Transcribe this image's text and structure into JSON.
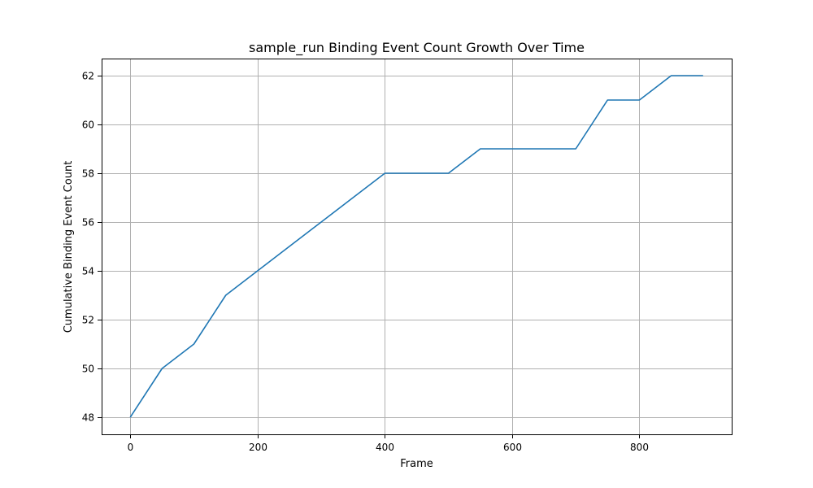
{
  "chart_data": {
    "type": "line",
    "title": "sample_run Binding Event Count Growth Over Time",
    "xlabel": "Frame",
    "ylabel": "Cumulative Binding Event Count",
    "xlim": [
      -45,
      945
    ],
    "ylim": [
      47.3,
      62.7
    ],
    "xticks": [
      0,
      200,
      400,
      600,
      800
    ],
    "yticks": [
      48,
      50,
      52,
      54,
      56,
      58,
      60,
      62
    ],
    "grid": true,
    "series": [
      {
        "color": "#1f77b4",
        "x": [
          0,
          50,
          100,
          150,
          200,
          250,
          300,
          350,
          400,
          450,
          500,
          550,
          600,
          650,
          700,
          750,
          800,
          850,
          900
        ],
        "y": [
          48,
          50,
          51,
          53,
          54,
          55,
          56,
          57,
          58,
          58,
          58,
          59,
          59,
          59,
          59,
          61,
          61,
          62,
          62
        ]
      }
    ]
  }
}
